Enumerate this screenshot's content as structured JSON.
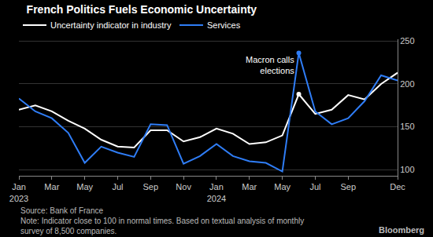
{
  "chart_data": {
    "type": "line",
    "title": "French Politics Fuels Economic Uncertainty",
    "categories": [
      "Jan 2023",
      null,
      "Mar",
      null,
      "May",
      null,
      "Jul",
      null,
      "Sep",
      null,
      "Nov",
      null,
      "Jan 2024",
      null,
      "Mar",
      null,
      "May",
      null,
      "Jul",
      null,
      "Sep",
      null,
      null,
      "Dec"
    ],
    "series": [
      {
        "name": "Uncertainty indicator in industry",
        "color": "#ffffff",
        "values": [
          170,
          175,
          168,
          157,
          148,
          135,
          127,
          126,
          146,
          146,
          133,
          138,
          148,
          142,
          130,
          132,
          140,
          188,
          165,
          170,
          187,
          182,
          200,
          213
        ]
      },
      {
        "name": "Services",
        "color": "#2f7df6",
        "values": [
          183,
          168,
          160,
          143,
          108,
          127,
          120,
          115,
          153,
          152,
          107,
          116,
          130,
          116,
          110,
          108,
          98,
          236,
          168,
          153,
          160,
          180,
          210,
          204
        ]
      }
    ],
    "ylim": [
      93,
      252
    ],
    "yticks": [
      100,
      150,
      200,
      250
    ],
    "grid": true,
    "legend": "top",
    "annotations": [
      {
        "text": "Macron calls elections",
        "x": 17,
        "y": 236
      }
    ],
    "source": "Source: Bank of France",
    "note": "Note: Indicator close to 100 in normal times. Based on textual analysis of monthly survey of 8,500 companies.",
    "credit": "Bloomberg"
  }
}
